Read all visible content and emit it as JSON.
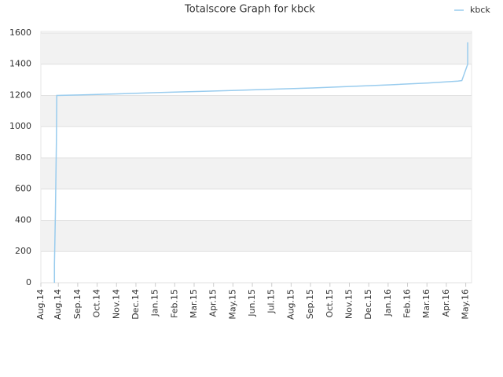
{
  "chart_data": {
    "type": "line",
    "title": "Totalscore Graph for kbck",
    "x": [
      0.7,
      0.7,
      0.75,
      0.8,
      0.82,
      2,
      4,
      6,
      8,
      10,
      12,
      14,
      16,
      18,
      20,
      21.5,
      21.7,
      22.0,
      22.0
    ],
    "series": [
      {
        "name": "kbck",
        "color": "#99ccee",
        "values": [
          0,
          120,
          450,
          900,
          1200,
          1203,
          1210,
          1218,
          1225,
          1232,
          1240,
          1248,
          1258,
          1268,
          1280,
          1292,
          1295,
          1400,
          1540
        ]
      }
    ],
    "xlim": [
      0,
      22.2
    ],
    "xticks": [
      {
        "value": 0,
        "label": "Aug.14"
      },
      {
        "value": 0.9,
        "label": "Aug.14"
      },
      {
        "value": 1.9,
        "label": "Sep.14"
      },
      {
        "value": 2.9,
        "label": "Oct.14"
      },
      {
        "value": 3.9,
        "label": "Nov.14"
      },
      {
        "value": 4.9,
        "label": "Dec.14"
      },
      {
        "value": 5.9,
        "label": "Jan.15"
      },
      {
        "value": 6.9,
        "label": "Feb.15"
      },
      {
        "value": 7.9,
        "label": "Mar.15"
      },
      {
        "value": 8.9,
        "label": "Apr.15"
      },
      {
        "value": 9.9,
        "label": "May.15"
      },
      {
        "value": 10.9,
        "label": "Jun.15"
      },
      {
        "value": 11.9,
        "label": "Jul.15"
      },
      {
        "value": 12.9,
        "label": "Aug.15"
      },
      {
        "value": 13.9,
        "label": "Sep.15"
      },
      {
        "value": 14.9,
        "label": "Oct.15"
      },
      {
        "value": 15.9,
        "label": "Nov.15"
      },
      {
        "value": 16.9,
        "label": "Dec.15"
      },
      {
        "value": 17.9,
        "label": "Jan.16"
      },
      {
        "value": 18.9,
        "label": "Feb.16"
      },
      {
        "value": 19.9,
        "label": "Mar.16"
      },
      {
        "value": 20.9,
        "label": "Apr.16"
      },
      {
        "value": 21.9,
        "label": "May.16"
      }
    ],
    "ylim": [
      0,
      1610
    ],
    "yticks": [
      0,
      200,
      400,
      600,
      800,
      1000,
      1200,
      1400,
      1600
    ],
    "grid": true,
    "bands": true,
    "legend": "top-right"
  }
}
